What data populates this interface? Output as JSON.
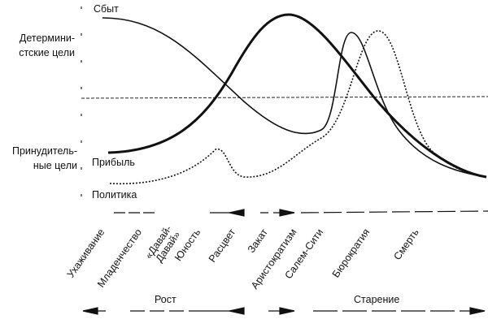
{
  "y_axis": {
    "top_label": "Детермини-\nстские цели",
    "bottom_label": "Принудитель-\nные цели"
  },
  "curves": {
    "sales": "Сбыт",
    "profit": "Прибыль",
    "politics": "Политика"
  },
  "stages": [
    "Ухаживание",
    "Младенчество",
    "«Давай-\nДавай»",
    "Юность",
    "Расцвет",
    "Закат",
    "Аристократизм",
    "Салем-Сити",
    "Бюрократия",
    "Смерть"
  ],
  "phases": {
    "growth": "Рост",
    "aging": "Старение"
  }
}
